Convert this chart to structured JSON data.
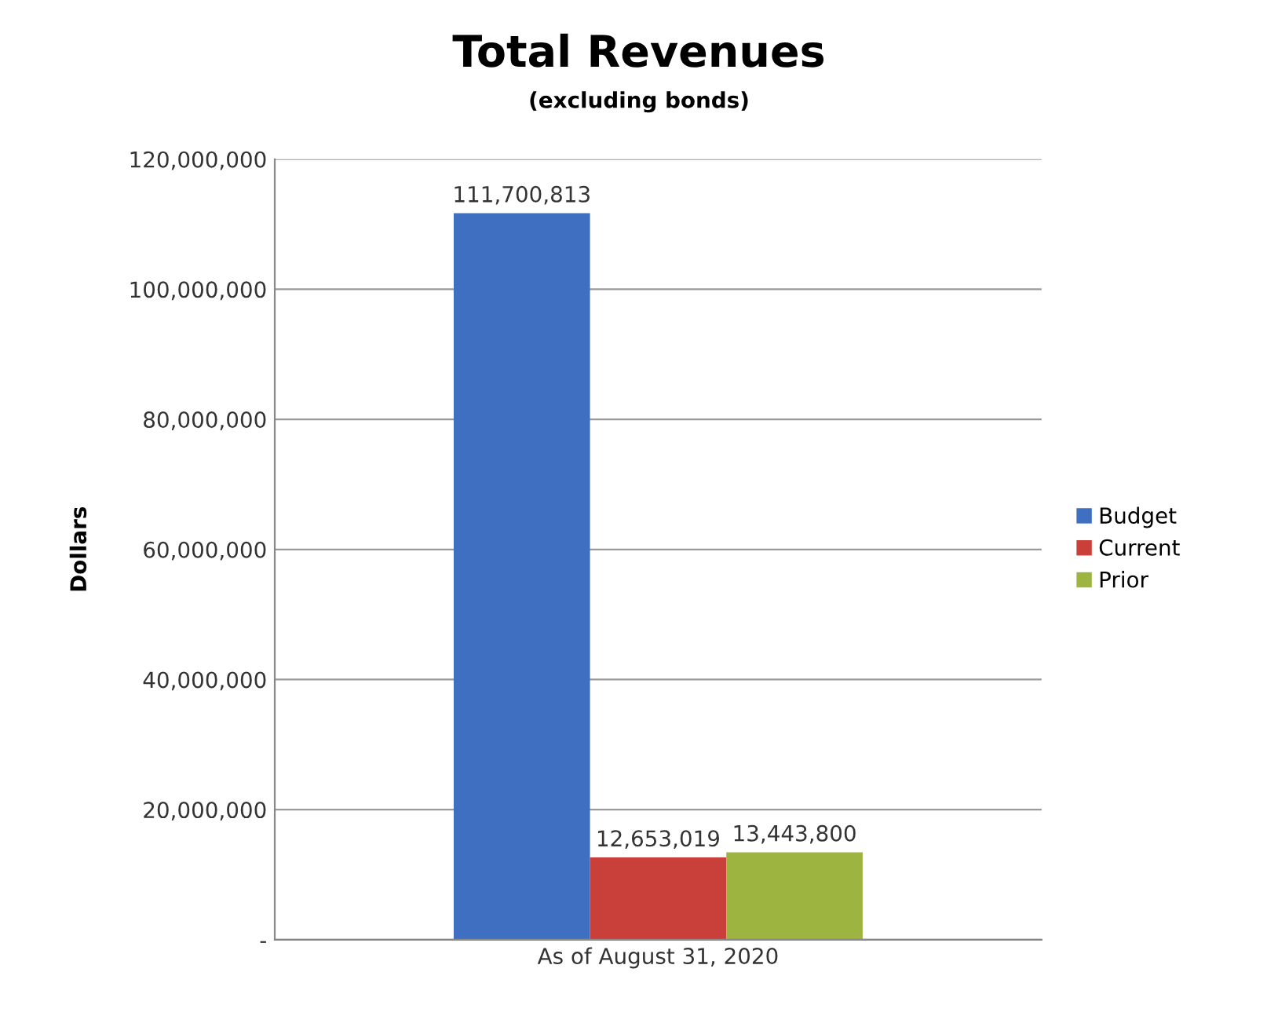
{
  "chart_data": {
    "type": "bar",
    "title": "Total Revenues",
    "subtitle": "(excluding bonds)",
    "ylabel": "Dollars",
    "categories": [
      "As of August 31, 2020"
    ],
    "series": [
      {
        "name": "Budget",
        "color": "#3f6fc1",
        "values": [
          111700813
        ]
      },
      {
        "name": "Current",
        "color": "#c9403b",
        "values": [
          12653019
        ]
      },
      {
        "name": "Prior",
        "color": "#9db540",
        "values": [
          13443800
        ]
      }
    ],
    "ylim": [
      0,
      120000000
    ],
    "yticks": [
      {
        "value": 0,
        "label": "-"
      },
      {
        "value": 20000000,
        "label": "20,000,000"
      },
      {
        "value": 40000000,
        "label": "40,000,000"
      },
      {
        "value": 60000000,
        "label": "60,000,000"
      },
      {
        "value": 80000000,
        "label": "80,000,000"
      },
      {
        "value": 100000000,
        "label": "100,000,000"
      },
      {
        "value": 120000000,
        "label": "120,000,000"
      }
    ],
    "value_labels": [
      "111,700,813",
      "12,653,019",
      "13,443,800"
    ],
    "grid": "y",
    "legend": "right"
  }
}
